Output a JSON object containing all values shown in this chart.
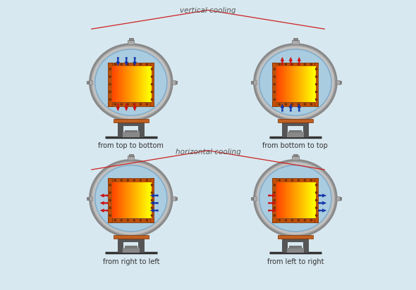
{
  "bg_color": "#d8e8f0",
  "title_vertical": "vertical cooling",
  "title_horizontal": "horizontal cooling",
  "labels": [
    "from top to bottom",
    "from bottom to top",
    "from right to left",
    "from left to right"
  ],
  "outer_ring_color": "#aaaaaa",
  "outer_ring_edge": "#777777",
  "inner_bg_color": "#aacce0",
  "frame_color": "#c05008",
  "frame_edge": "#7a3000",
  "hot_color_left": "#dd4400",
  "hot_color_right": "#ffdd00",
  "arrow_red": "#cc1111",
  "arrow_blue": "#1133aa",
  "dark_color": "#333333",
  "stand_color": "#555555",
  "text_color": "#333333",
  "annot_color": "#555555",
  "annot_line_color": "#cc2222",
  "dot_color": "#7a3000",
  "font_size": 7,
  "annot_font_size": 7.5
}
